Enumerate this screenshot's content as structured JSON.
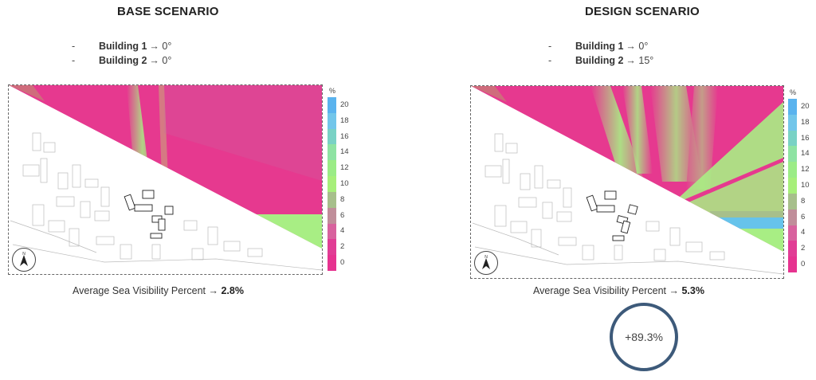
{
  "base": {
    "title": "BASE SCENARIO",
    "buildings": [
      {
        "dash": "-",
        "name": "Building 1",
        "value": "→ 0°"
      },
      {
        "dash": "-",
        "name": "Building 2",
        "value": "→ 0°"
      }
    ],
    "avg_label": "Average Sea Visibility Percent →",
    "avg_value": "2.8%"
  },
  "design": {
    "title": "DESIGN SCENARIO",
    "buildings": [
      {
        "dash": "-",
        "name": "Building 1",
        "value": "→ 0°"
      },
      {
        "dash": "-",
        "name": "Building 2",
        "value": "→ 15°"
      }
    ],
    "avg_label": "Average Sea Visibility Percent →",
    "avg_value": "5.3%"
  },
  "legend": {
    "unit": "%",
    "ticks": [
      "20",
      "18",
      "16",
      "14",
      "12",
      "10",
      "8",
      "6",
      "4",
      "2",
      "0"
    ],
    "colors": [
      "#5ab3ee",
      "#72c6ea",
      "#79d2c5",
      "#8ee3a3",
      "#9bec86",
      "#a7ef7a",
      "#a7bf8b",
      "#c08e9a",
      "#d8629e",
      "#e13d95",
      "#e63390"
    ]
  },
  "change": "+89.3%",
  "colors": {
    "magenta": "#e6398f",
    "green": "#a8ee84",
    "blue": "#66c3eb",
    "circle": "#3d5a7a"
  }
}
